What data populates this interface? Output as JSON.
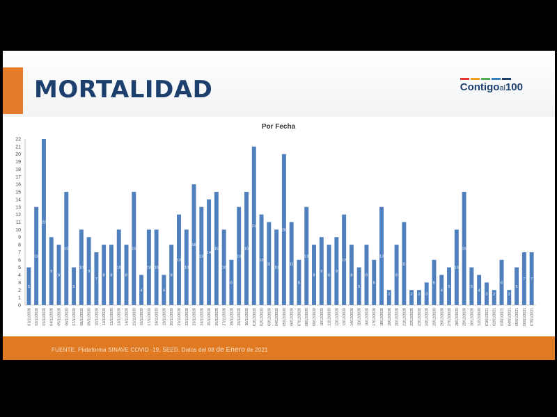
{
  "header": {
    "title": "MORTALIDAD",
    "logo_text_a": "Contigo",
    "logo_text_b": "al",
    "logo_text_c": "100",
    "logo_colors": [
      "#e5352c",
      "#f4a21b",
      "#4cb04f",
      "#2f7fc1",
      "#1d3f6e"
    ]
  },
  "footer": {
    "source_a": "FUENTE. Plataforma SINAVE COVID -19, SEED. Datos del 08 ",
    "source_b": "de",
    "source_c": " ",
    "source_d": "Enero",
    "source_e": " de 2021"
  },
  "colors": {
    "bar": "#4f7fbd",
    "accent": "#e07a22",
    "title": "#1d3f6e"
  },
  "chart_data": {
    "type": "bar",
    "title": "Por Fecha",
    "xlabel": "",
    "ylabel": "",
    "ylim": [
      0,
      22
    ],
    "yticks": [
      0,
      1,
      2,
      3,
      4,
      5,
      6,
      7,
      8,
      9,
      10,
      11,
      12,
      13,
      14,
      15,
      16,
      17,
      18,
      19,
      20,
      21,
      22
    ],
    "grid": false,
    "categories": [
      "01/11/2020",
      "02/11/2020",
      "03/11/2020",
      "04/11/2020",
      "05/11/2020",
      "06/11/2020",
      "07/11/2020",
      "08/11/2020",
      "09/11/2020",
      "10/11/2020",
      "11/11/2020",
      "12/11/2020",
      "13/11/2020",
      "14/11/2020",
      "15/11/2020",
      "16/11/2020",
      "17/11/2020",
      "18/11/2020",
      "19/11/2020",
      "20/11/2020",
      "21/11/2020",
      "22/11/2020",
      "23/11/2020",
      "24/11/2020",
      "25/11/2020",
      "26/11/2020",
      "27/11/2020",
      "28/11/2020",
      "29/11/2020",
      "30/11/2020",
      "01/12/2020",
      "02/12/2020",
      "03/12/2020",
      "04/12/2020",
      "05/12/2020",
      "06/12/2020",
      "07/12/2020",
      "08/12/2020",
      "09/12/2020",
      "10/12/2020",
      "11/12/2020",
      "12/12/2020",
      "13/12/2020",
      "14/12/2020",
      "15/12/2020",
      "16/12/2020",
      "17/12/2020",
      "18/12/2020",
      "19/12/2020",
      "20/12/2020",
      "21/12/2020",
      "22/12/2020",
      "23/12/2020",
      "24/12/2020",
      "25/12/2020",
      "26/12/2020",
      "27/12/2020",
      "28/12/2020",
      "29/12/2020",
      "30/12/2020",
      "31/12/2020",
      "01/01/2021",
      "02/01/2021",
      "03/01/2021",
      "04/01/2021",
      "05/01/2021",
      "06/01/2021",
      "07/01/2021"
    ],
    "values": [
      5,
      13,
      22,
      9,
      8,
      15,
      5,
      10,
      9,
      7,
      8,
      8,
      10,
      8,
      15,
      4,
      10,
      10,
      4,
      8,
      12,
      10,
      16,
      13,
      14,
      15,
      10,
      6,
      13,
      15,
      21,
      12,
      11,
      10,
      20,
      11,
      6,
      13,
      8,
      9,
      8,
      9,
      12,
      8,
      5,
      8,
      6,
      13,
      2,
      8,
      11,
      2,
      2,
      3,
      6,
      4,
      5,
      10,
      15,
      5,
      4,
      3,
      2,
      6,
      2,
      5,
      7,
      7
    ]
  }
}
